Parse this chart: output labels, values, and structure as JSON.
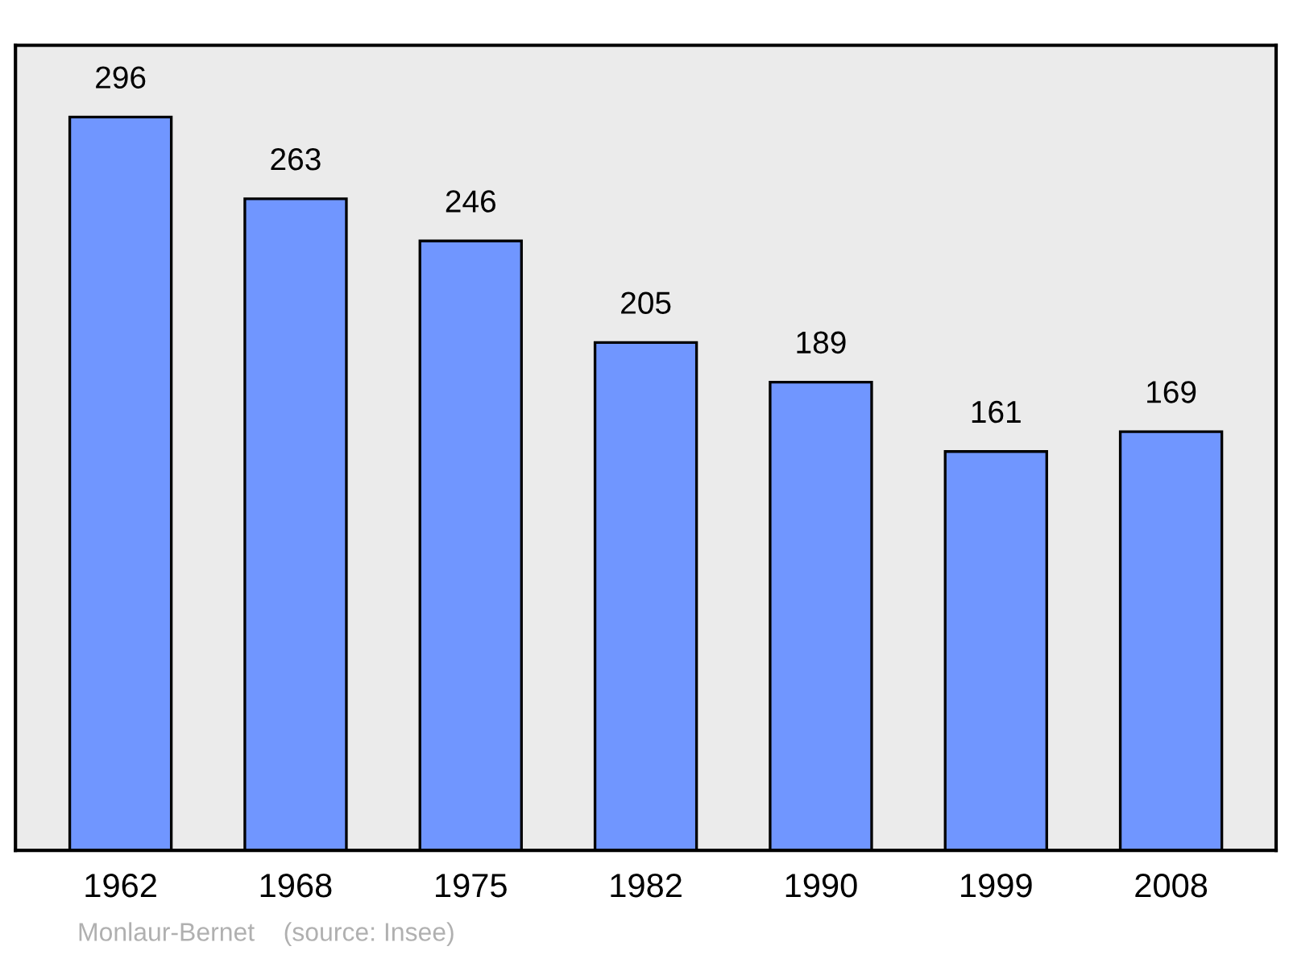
{
  "chart_data": {
    "type": "bar",
    "categories": [
      "1962",
      "1968",
      "1975",
      "1982",
      "1990",
      "1999",
      "2008"
    ],
    "values": [
      296,
      263,
      246,
      205,
      189,
      161,
      169
    ],
    "color": "#7096ff",
    "ylim": [
      0,
      325
    ],
    "data_labels": true,
    "tick_labels": "x",
    "grid": false,
    "annotations": [
      "Monlaur-Bernet    (source: Insee)"
    ]
  }
}
